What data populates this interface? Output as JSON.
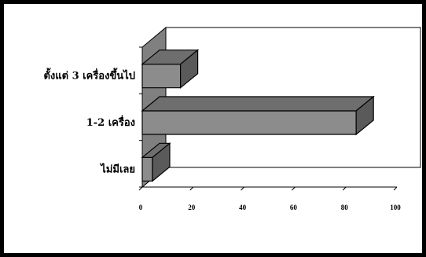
{
  "chart_data": {
    "type": "bar",
    "orientation": "horizontal",
    "style": "3d",
    "categories": [
      "ตั้งแต่ 3 เครื่องขึ้นไป",
      "1-2 เครื่อง",
      "ไม่มีเลย"
    ],
    "values": [
      15,
      84,
      4
    ],
    "xlim": [
      0,
      100
    ],
    "xticks": [
      "0",
      "20",
      "40",
      "60",
      "80",
      "100"
    ],
    "title": "",
    "xlabel": "",
    "ylabel": "",
    "grid": false,
    "legend": "none"
  },
  "colors": {
    "bar_front": "#8c8c8c",
    "bar_top": "#6e6e6e",
    "bar_side": "#5a5a5a",
    "back_wall": "#ffffff",
    "side_wall": "#808080",
    "frame": "#000000"
  }
}
